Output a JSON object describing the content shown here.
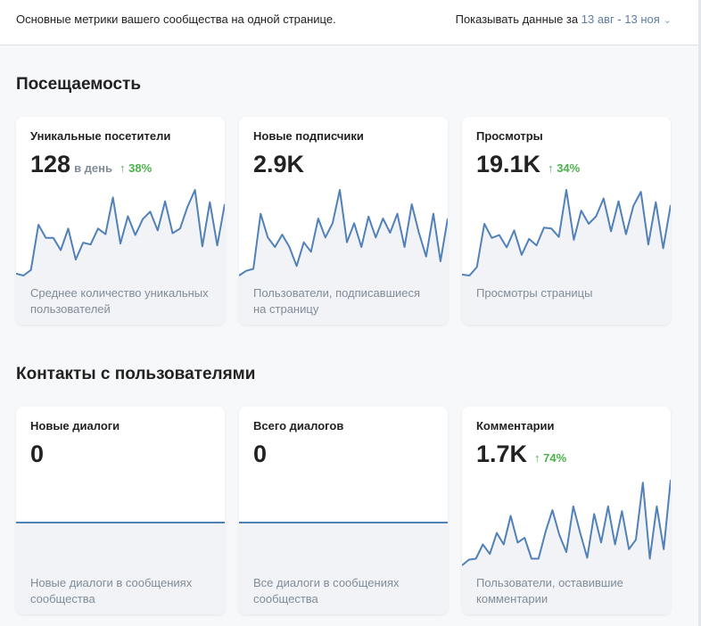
{
  "header": {
    "description": "Основные метрики вашего сообщества на одной странице.",
    "period_label": "Показывать данные за",
    "period_value": "13 авг - 13 ноя"
  },
  "sections": [
    {
      "title": "Посещаемость",
      "cards": [
        {
          "title": "Уникальные посетители",
          "value": "128",
          "unit": "в день",
          "change": "38%",
          "caption": "Среднее количество уникальных пользователей",
          "spark": [
            8,
            6,
            12,
            60,
            46,
            46,
            33,
            56,
            23,
            41,
            39,
            56,
            50,
            89,
            40,
            69,
            49,
            66,
            74,
            54,
            85,
            51,
            56,
            79,
            97,
            37,
            84,
            38,
            82
          ]
        },
        {
          "title": "Новые подписчики",
          "value": "2.9K",
          "caption": "Пользователи, подписавшиеся на страницу",
          "spark": [
            6,
            11,
            13,
            71,
            46,
            36,
            49,
            36,
            16,
            41,
            31,
            66,
            46,
            61,
            96,
            41,
            61,
            36,
            68,
            46,
            66,
            51,
            71,
            36,
            81,
            51,
            26,
            71,
            21,
            66
          ]
        },
        {
          "title": "Просмотры",
          "value": "19.1K",
          "change": "34%",
          "caption": "Просмотры страницы",
          "spark": [
            6,
            5,
            14,
            60,
            45,
            48,
            35,
            53,
            27,
            44,
            37,
            56,
            55,
            46,
            96,
            43,
            74,
            60,
            68,
            87,
            52,
            84,
            49,
            79,
            94,
            38,
            83,
            34,
            80
          ]
        }
      ]
    },
    {
      "title": "Контакты с пользователями",
      "cards": [
        {
          "title": "Новые диалоги",
          "value": "0",
          "caption": "Новые диалоги в сообщениях сообщества",
          "spark": [
            0,
            0,
            0,
            0,
            0,
            0,
            0,
            0,
            0,
            0,
            0,
            0,
            0,
            0,
            0,
            0,
            0,
            0,
            0,
            0,
            0,
            0,
            0,
            0,
            0,
            0,
            0,
            0,
            0,
            0
          ]
        },
        {
          "title": "Всего диалогов",
          "value": "0",
          "caption": "Все диалоги в сообщениях сообщества",
          "spark": [
            0,
            0,
            0,
            0,
            0,
            0,
            0,
            0,
            0,
            0,
            0,
            0,
            0,
            0,
            0,
            0,
            0,
            0,
            0,
            0,
            0,
            0,
            0,
            0,
            0,
            0,
            0,
            0,
            0,
            0
          ]
        },
        {
          "title": "Комментарии",
          "value": "1.7K",
          "change": "74%",
          "caption": "Пользователи, оставившие комментарии",
          "spark": [
            5,
            11,
            12,
            27,
            17,
            39,
            27,
            57,
            29,
            34,
            12,
            12,
            40,
            63,
            37,
            19,
            67,
            39,
            13,
            59,
            29,
            67,
            27,
            62,
            22,
            32,
            92,
            12,
            67,
            22,
            95
          ]
        }
      ]
    }
  ]
}
